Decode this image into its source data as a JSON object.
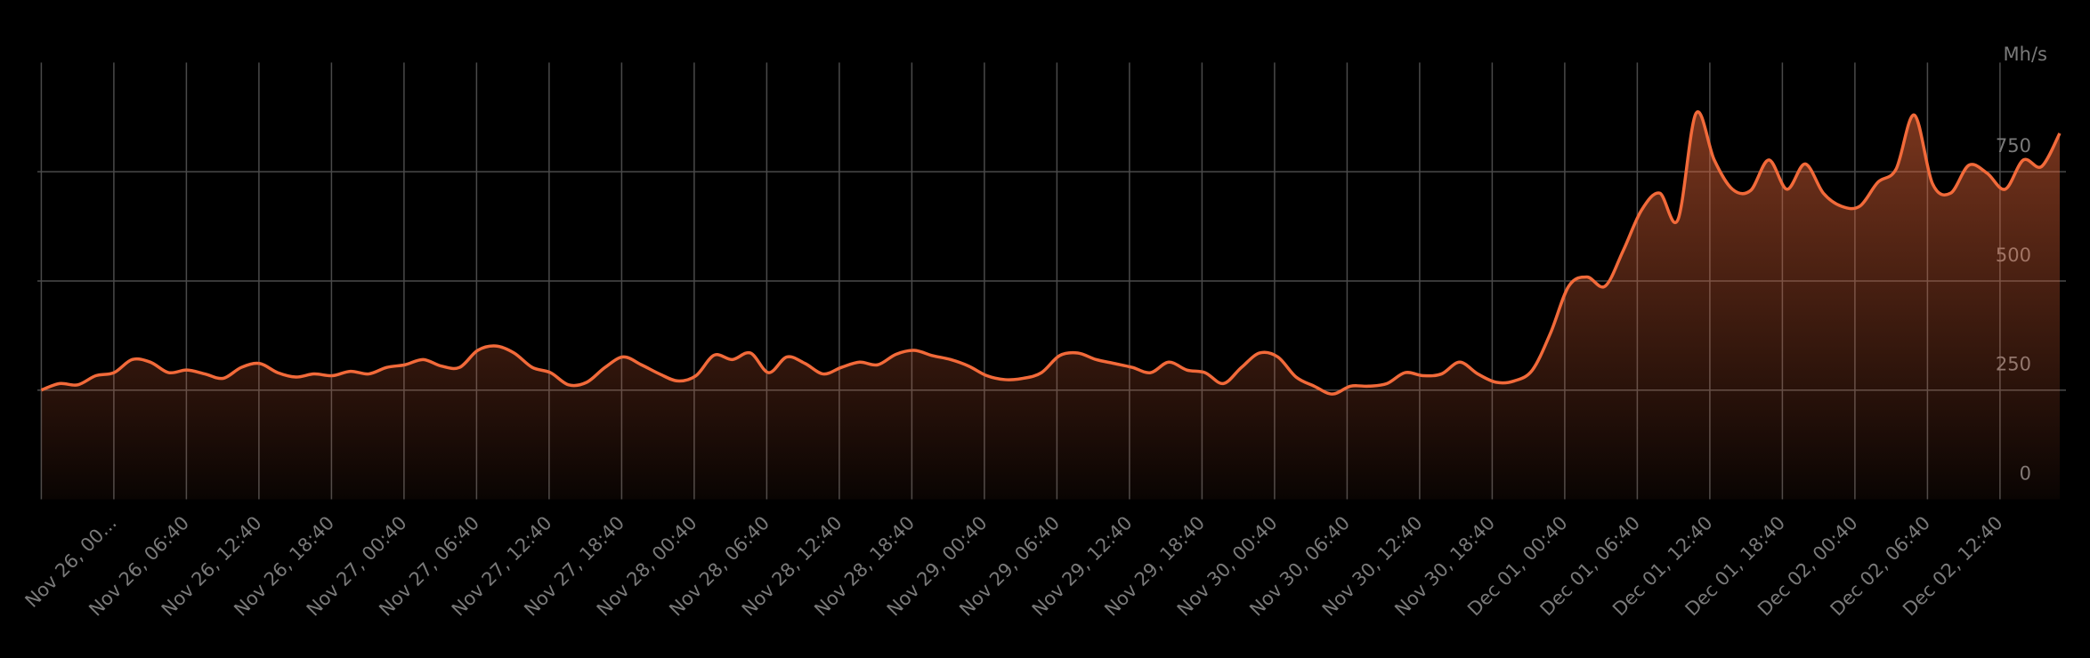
{
  "chart_data": {
    "type": "area",
    "y_axis_label": "Mh/s",
    "color": "#f26a3a",
    "ylim": [
      0,
      1000
    ],
    "yticks": [
      0,
      250,
      500,
      750
    ],
    "grid": true,
    "xticks": [
      null,
      "Nov 26, 00...",
      "Nov 26, 06:40",
      "Nov 26, 12:40",
      "Nov 26, 18:40",
      "Nov 27, 00:40",
      "Nov 27, 06:40",
      "Nov 27, 12:40",
      "Nov 27, 18:40",
      "Nov 28, 00:40",
      "Nov 28, 06:40",
      "Nov 28, 12:40",
      "Nov 28, 18:40",
      "Nov 29, 00:40",
      "Nov 29, 06:40",
      "Nov 29, 12:40",
      "Nov 29, 18:40",
      "Nov 30, 00:40",
      "Nov 30, 06:40",
      "Nov 30, 12:40",
      "Nov 30, 18:40",
      "Dec 01, 00:40",
      "Dec 01, 06:40",
      "Dec 01, 12:40",
      "Dec 01, 18:40",
      "Dec 02, 00:40",
      "Dec 02, 06:40",
      "Dec 02, 12:40"
    ],
    "values": [
      250,
      265,
      262,
      283,
      290,
      320,
      314,
      290,
      296,
      287,
      277,
      302,
      311,
      290,
      280,
      287,
      283,
      293,
      287,
      302,
      308,
      320,
      305,
      302,
      341,
      351,
      335,
      302,
      290,
      262,
      268,
      302,
      326,
      308,
      287,
      271,
      283,
      330,
      320,
      335,
      290,
      326,
      311,
      287,
      302,
      314,
      308,
      332,
      341,
      329,
      320,
      305,
      283,
      274,
      277,
      290,
      329,
      335,
      320,
      311,
      302,
      290,
      314,
      296,
      290,
      265,
      302,
      335,
      326,
      280,
      259,
      241,
      259,
      259,
      265,
      290,
      283,
      287,
      314,
      287,
      268,
      271,
      296,
      381,
      488,
      509,
      488,
      570,
      662,
      701,
      640,
      884,
      777,
      710,
      707,
      777,
      710,
      768,
      701,
      671,
      671,
      726,
      756,
      880,
      723,
      701,
      765,
      747,
      710,
      777,
      762,
      838
    ]
  }
}
